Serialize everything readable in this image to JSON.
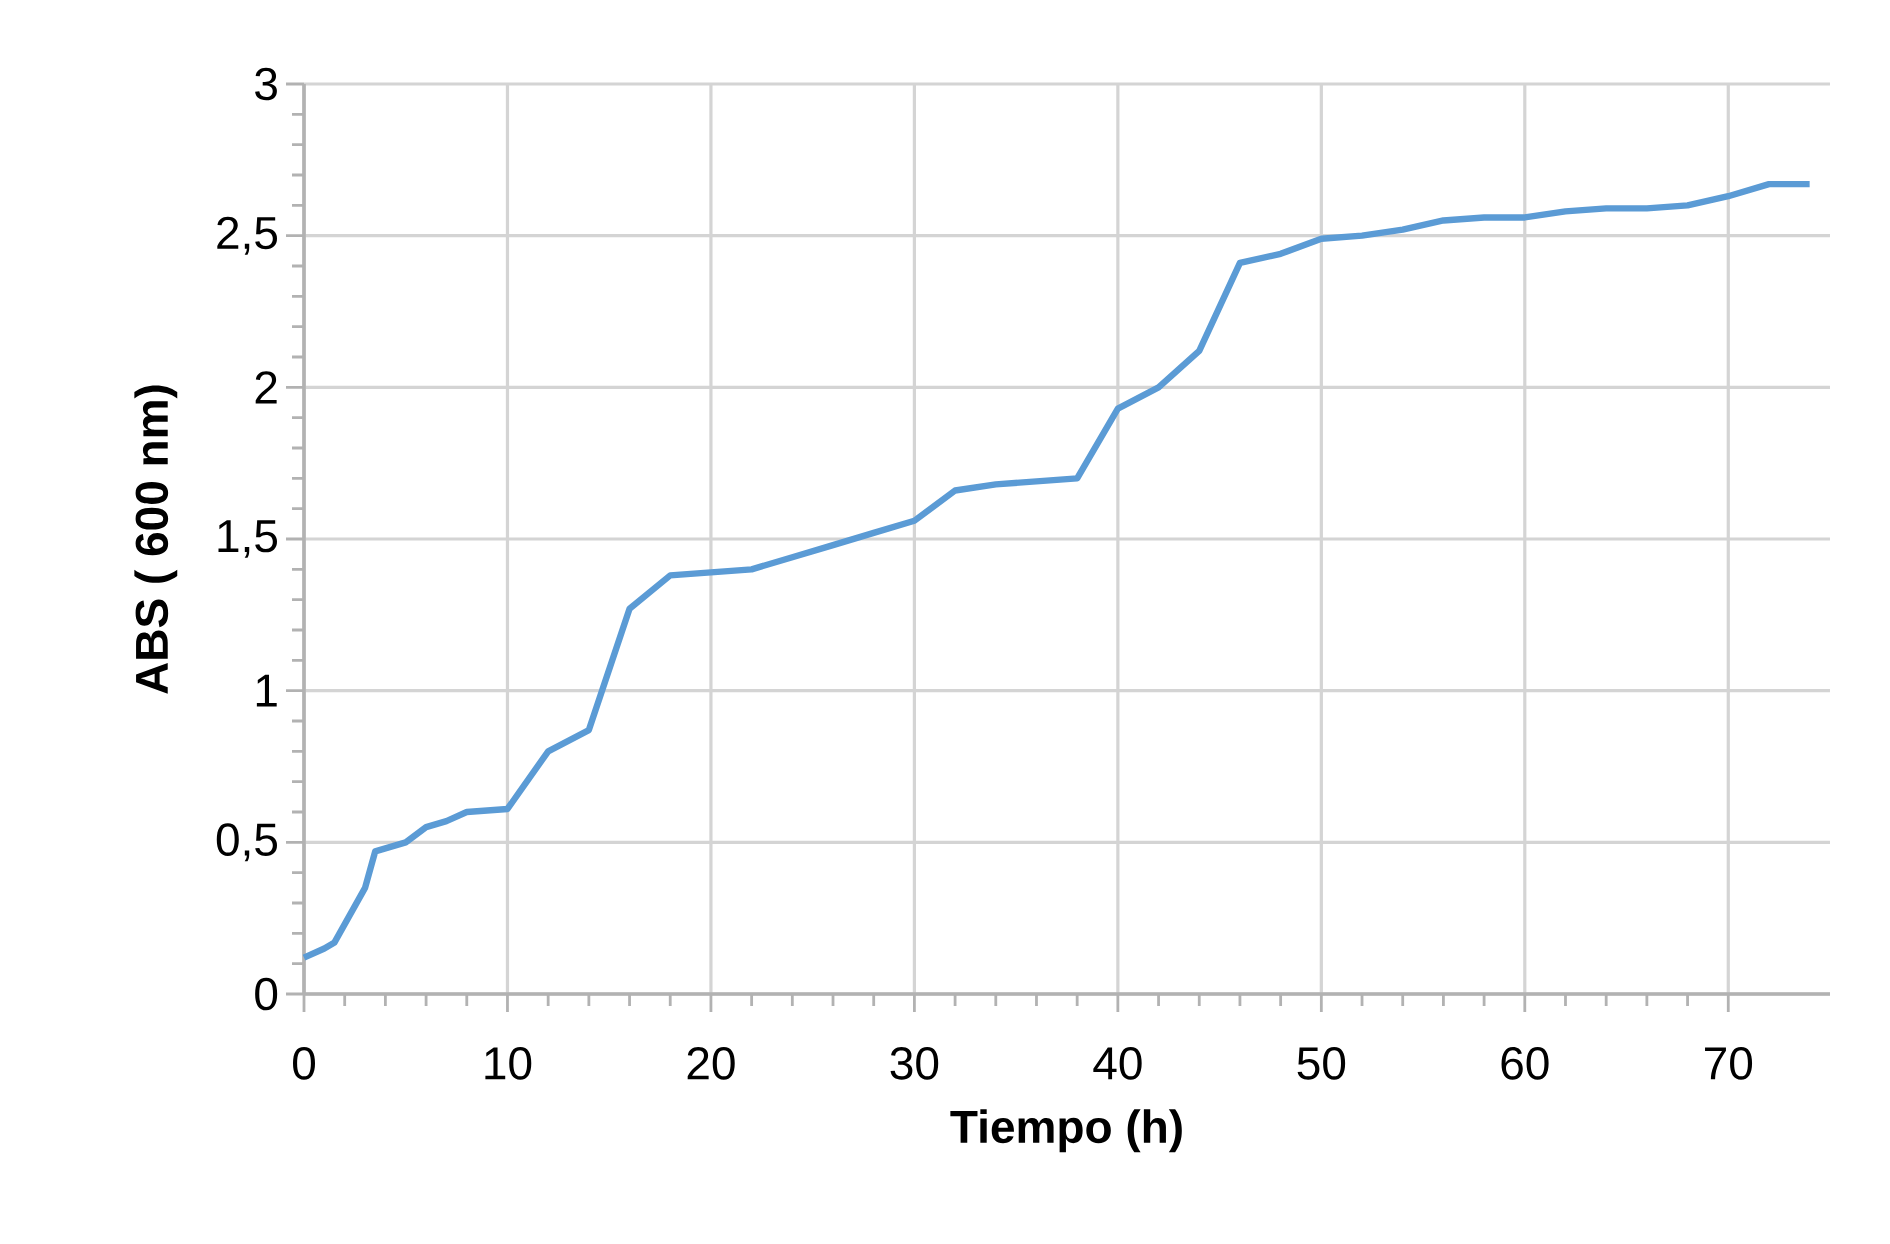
{
  "chart_data": {
    "type": "line",
    "xlabel": "Tiempo (h)",
    "ylabel": "ABS ( 600 nm)",
    "x": [
      0,
      1,
      1.5,
      3,
      3.5,
      5,
      6,
      7,
      8,
      10,
      12,
      14,
      16,
      18,
      20,
      22,
      24,
      26,
      28,
      30,
      32,
      34,
      36,
      38,
      40,
      42,
      44,
      46,
      48,
      50,
      52,
      54,
      56,
      58,
      60,
      62,
      64,
      66,
      68,
      70,
      72,
      74
    ],
    "series": [
      {
        "color": "#5b9bd5",
        "values": [
          0.12,
          0.15,
          0.17,
          0.35,
          0.47,
          0.5,
          0.55,
          0.57,
          0.6,
          0.61,
          0.8,
          0.87,
          1.27,
          1.38,
          1.39,
          1.4,
          1.44,
          1.48,
          1.52,
          1.56,
          1.66,
          1.68,
          1.69,
          1.7,
          1.93,
          2.0,
          2.12,
          2.41,
          2.44,
          2.49,
          2.5,
          2.52,
          2.55,
          2.56,
          2.56,
          2.58,
          2.59,
          2.59,
          2.6,
          2.63,
          2.67,
          2.67
        ]
      }
    ],
    "xlim": [
      0,
      75
    ],
    "ylim": [
      0,
      3
    ],
    "xticks": [
      0,
      10,
      20,
      30,
      40,
      50,
      60,
      70
    ],
    "yticks": [
      0,
      {
        "value": 0.5,
        "label": "0,5"
      },
      1,
      {
        "value": 1.5,
        "label": "1,5"
      },
      2,
      {
        "value": 2.5,
        "label": "2,5"
      },
      3
    ],
    "grid": true,
    "marker": "none",
    "line_style": "solid",
    "legend": false
  }
}
